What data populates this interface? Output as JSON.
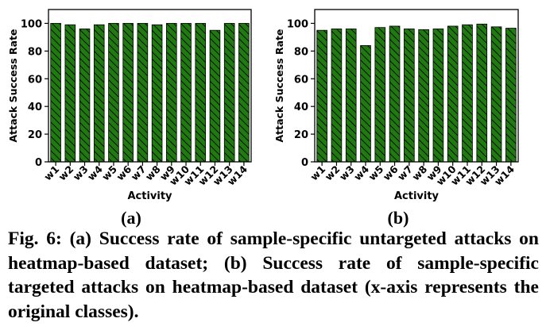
{
  "colors": {
    "bar_fill": "#1f7a0f",
    "bar_edge": "#000000",
    "hatch": "#000000"
  },
  "chart_data": [
    {
      "type": "bar",
      "panel": "(a)",
      "title": "",
      "xlabel": "Activity",
      "ylabel": "Attack Success Rate",
      "ylim": [
        0,
        110
      ],
      "yticks": [
        "0",
        "20",
        "40",
        "60",
        "80",
        "100"
      ],
      "categories": [
        "w1",
        "w2",
        "w3",
        "w4",
        "w5",
        "w6",
        "w7",
        "w8",
        "w9",
        "w10",
        "w11",
        "w12",
        "w13",
        "w14"
      ],
      "values": [
        100,
        99,
        96,
        99,
        100,
        100,
        100,
        99,
        100,
        100,
        100,
        95,
        100,
        100
      ],
      "hatch": "\\\\",
      "grid": false
    },
    {
      "type": "bar",
      "panel": "(b)",
      "title": "",
      "xlabel": "Activity",
      "ylabel": "Attack Success Rate",
      "ylim": [
        0,
        110
      ],
      "yticks": [
        "0",
        "20",
        "40",
        "60",
        "80",
        "100"
      ],
      "categories": [
        "w1",
        "w2",
        "w3",
        "w4",
        "w5",
        "w6",
        "w7",
        "w8",
        "w9",
        "w10",
        "w11",
        "w12",
        "w13",
        "w14"
      ],
      "values": [
        95,
        96,
        96,
        84,
        97,
        98,
        96,
        95.5,
        96,
        98,
        99,
        99.5,
        97.5,
        96.5
      ],
      "hatch": "\\\\",
      "grid": false
    }
  ],
  "panel_labels": {
    "a": "(a)",
    "b": "(b)"
  },
  "caption": "Fig. 6: (a) Success rate of sample-specific untargeted attacks on heatmap-based dataset; (b) Success rate of sample-specific targeted attacks on heatmap-based dataset (x-axis represents the original classes)."
}
